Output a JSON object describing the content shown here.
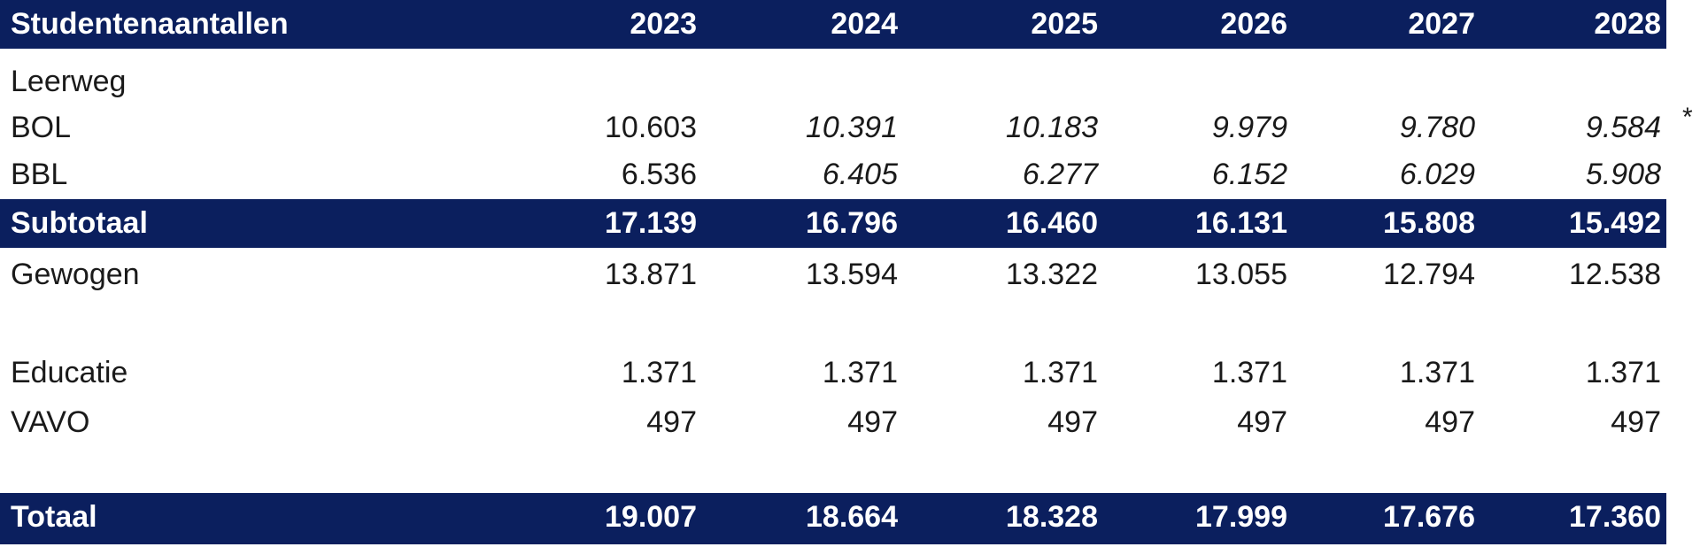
{
  "table": {
    "header": {
      "label": "Studentenaantallen",
      "years": [
        "2023",
        "2024",
        "2025",
        "2026",
        "2027",
        "2028"
      ]
    },
    "leerweg_label": "Leerweg",
    "bol": {
      "label": "BOL",
      "values": [
        "10.603",
        "10.391",
        "10.183",
        "9.979",
        "9.780",
        "9.584"
      ]
    },
    "bbl": {
      "label": "BBL",
      "values": [
        "6.536",
        "6.405",
        "6.277",
        "6.152",
        "6.029",
        "5.908"
      ]
    },
    "subtotaal": {
      "label": "Subtotaal",
      "values": [
        "17.139",
        "16.796",
        "16.460",
        "16.131",
        "15.808",
        "15.492"
      ]
    },
    "gewogen": {
      "label": "Gewogen",
      "values": [
        "13.871",
        "13.594",
        "13.322",
        "13.055",
        "12.794",
        "12.538"
      ]
    },
    "educatie": {
      "label": "Educatie",
      "values": [
        "1.371",
        "1.371",
        "1.371",
        "1.371",
        "1.371",
        "1.371"
      ]
    },
    "vavo": {
      "label": "VAVO",
      "values": [
        "497",
        "497",
        "497",
        "497",
        "497",
        "497"
      ]
    },
    "totaal": {
      "label": "Totaal",
      "values": [
        "19.007",
        "18.664",
        "18.328",
        "17.999",
        "17.676",
        "17.360"
      ]
    },
    "marker": "*",
    "colors": {
      "band": "#0b1f5e",
      "band_text": "#ffffff",
      "text": "#1a1a1a"
    }
  }
}
